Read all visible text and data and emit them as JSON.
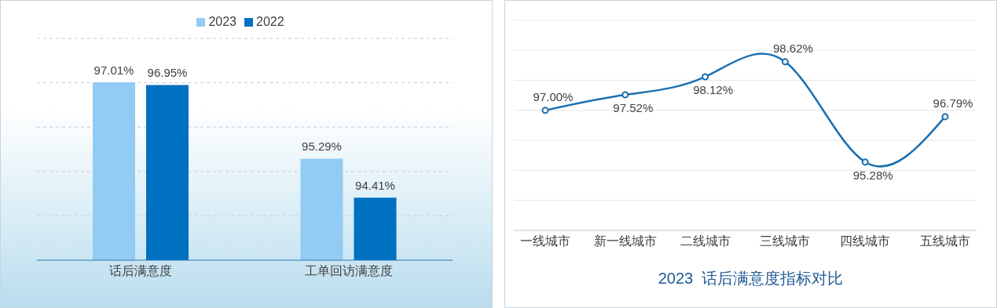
{
  "chart_data": [
    {
      "type": "bar",
      "categories": [
        "话后满意度",
        "工单回访满意度"
      ],
      "series": [
        {
          "name": "2023",
          "color": "#92cbf3",
          "values": [
            97.01,
            95.29
          ],
          "value_labels": [
            "97.01%",
            "95.29%"
          ]
        },
        {
          "name": "2022",
          "color": "#0070c0",
          "values": [
            96.95,
            94.41
          ],
          "value_labels": [
            "96.95%",
            "94.41%"
          ]
        }
      ],
      "ylim": [
        93,
        98
      ],
      "tick_labels": "x",
      "grid": "y",
      "legend": "top"
    },
    {
      "type": "line",
      "title": "2023  话后满意度指标对比",
      "categories": [
        "一线城市",
        "新一线城市",
        "二线城市",
        "三线城市",
        "四线城市",
        "五线城市"
      ],
      "series": [
        {
          "color": "#1a6fb0",
          "values": [
            97.0,
            97.52,
            98.12,
            98.62,
            95.28,
            96.79
          ],
          "value_labels": [
            "97.00%",
            "97.52%",
            "98.12%",
            "98.62%",
            "95.28%",
            "96.79%"
          ]
        }
      ],
      "ylim": [
        93,
        100
      ],
      "tick_labels": "x",
      "grid": "y",
      "marker": "circle",
      "line_style": "solid"
    }
  ]
}
